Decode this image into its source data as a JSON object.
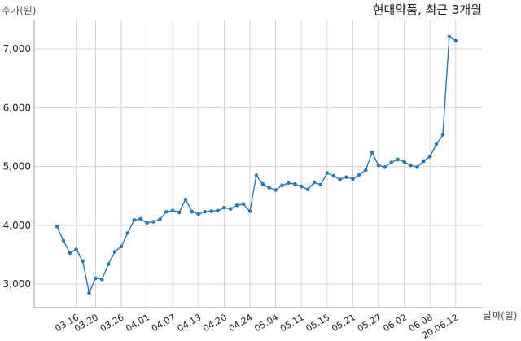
{
  "chart_data": {
    "type": "line",
    "title": "현대약품, 최근 3개월",
    "ylabel": "주가(원)",
    "xlabel": "날짜(일)",
    "ylim": [
      2600,
      7500
    ],
    "yticks": [
      3000,
      4000,
      5000,
      6000,
      7000
    ],
    "ytick_labels": [
      "3,000",
      "4,000",
      "5,000",
      "6,000",
      "7,000"
    ],
    "x_tick_indices": [
      3,
      6,
      10,
      14,
      18,
      22,
      26,
      30,
      34,
      38,
      42,
      46,
      50,
      54,
      58,
      62
    ],
    "x_tick_labels": [
      "03.16",
      "03.20",
      "03.26",
      "04.01",
      "04.07",
      "04.13",
      "04.20",
      "04.24",
      "05.04",
      "05.11",
      "05.15",
      "05.21",
      "05.27",
      "06.02",
      "06.08",
      "20.06.12"
    ],
    "grid": true,
    "line_color": "#2b78b0",
    "series": [
      {
        "values": [
          3980,
          3740,
          3530,
          3590,
          3390,
          2850,
          3100,
          3080,
          3340,
          3550,
          3640,
          3870,
          4090,
          4110,
          4040,
          4060,
          4100,
          4230,
          4250,
          4220,
          4440,
          4230,
          4190,
          4230,
          4240,
          4250,
          4300,
          4280,
          4340,
          4360,
          4240,
          4850,
          4700,
          4640,
          4600,
          4680,
          4720,
          4700,
          4660,
          4610,
          4730,
          4690,
          4890,
          4840,
          4780,
          4820,
          4790,
          4860,
          4940,
          5240,
          5020,
          4990,
          5070,
          5120,
          5080,
          5020,
          4990,
          5090,
          5170,
          5380,
          5540,
          7210,
          7140
        ]
      }
    ]
  }
}
